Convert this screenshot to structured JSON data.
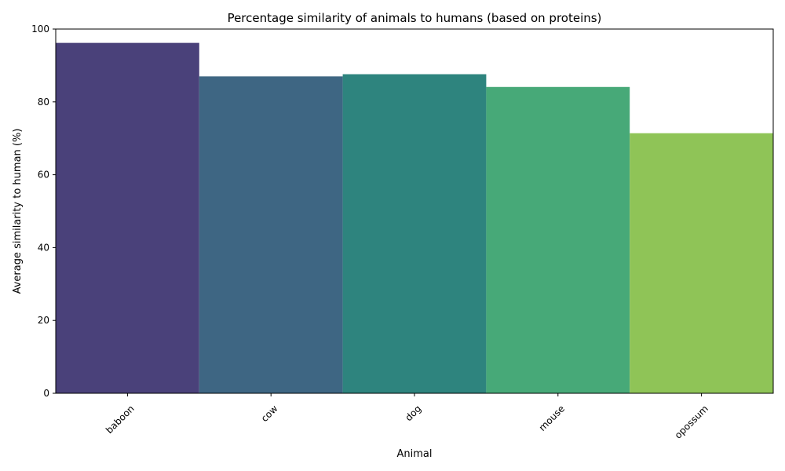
{
  "chart_data": {
    "type": "bar",
    "title": "Percentage similarity of animals to humans (based on proteins)",
    "xlabel": "Animal",
    "ylabel": "Average similarity to human (%)",
    "categories": [
      "baboon",
      "cow",
      "dog",
      "mouse",
      "opossum"
    ],
    "values": [
      96.2,
      87.0,
      87.6,
      84.1,
      71.4
    ],
    "colors": [
      "#4a417a",
      "#3e6683",
      "#2e847e",
      "#47a978",
      "#8fc457"
    ],
    "ylim": [
      0,
      100
    ],
    "yticks": [
      0,
      20,
      40,
      60,
      80,
      100
    ],
    "xtick_rotation": 45,
    "grid": false,
    "legend": "none"
  }
}
